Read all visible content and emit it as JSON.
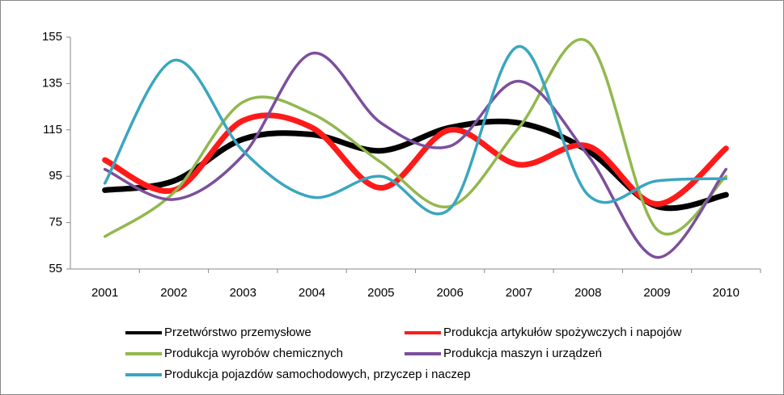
{
  "chart_data": {
    "type": "line",
    "categories": [
      "2001",
      "2002",
      "2003",
      "2004",
      "2005",
      "2006",
      "2007",
      "2008",
      "2009",
      "2010"
    ],
    "series": [
      {
        "name": "Przetwórstwo przemysłowe",
        "color": "#000000",
        "values": [
          89,
          93,
          111,
          113,
          106,
          116,
          118,
          106,
          82,
          87
        ]
      },
      {
        "name": "Produkcja artykułów spożywczych i napojów",
        "color": "#ff1a1a",
        "values": [
          102,
          89,
          119,
          116,
          90,
          115,
          100,
          108,
          83,
          107
        ]
      },
      {
        "name": "Produkcja wyrobów chemicznych",
        "color": "#92b84e",
        "values": [
          69,
          88,
          127,
          122,
          101,
          82,
          116,
          153,
          72,
          95
        ]
      },
      {
        "name": "Produkcja maszyn i urządzeń",
        "color": "#7b4f9d",
        "values": [
          98,
          85,
          104,
          148,
          118,
          108,
          136,
          104,
          60,
          98
        ]
      },
      {
        "name": "Produkcja pojazdów samochodowych, przyczep i naczep",
        "color": "#3aa6c0",
        "values": [
          92,
          145,
          106,
          86,
          95,
          81,
          151,
          87,
          93,
          94
        ]
      }
    ],
    "ylim": [
      55,
      155
    ],
    "yticks": [
      55,
      75,
      95,
      115,
      135,
      155
    ],
    "grid": false,
    "smooth": true
  }
}
